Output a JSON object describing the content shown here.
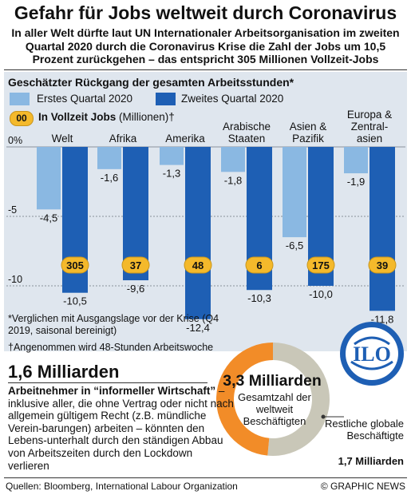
{
  "headline": "Gefahr für Jobs weltweit durch Coronavirus",
  "intro": "In aller Welt dürfte laut UN Internationaler Arbeitsorganisation im zweiten Quartal 2020 durch die Coronavirus Krise die Zahl der Jobs um 10,5 Prozent zurückgehen – das entspricht 305 Millionen Vollzeit-Jobs",
  "colors": {
    "q1": "#8ab8e2",
    "q2": "#1e5fb4",
    "badge": "#f4b92b",
    "panel": "#dfe6ee",
    "donut_informal": "#f28c28",
    "donut_remaining": "#c9c7b8"
  },
  "chart_data": {
    "type": "bar",
    "title": "Geschätzter Rückgang der gesamten Arbeitsstunden*",
    "yaxis_ticks": [
      "0%",
      "-5",
      "-10"
    ],
    "ylim": [
      -13.5,
      0
    ],
    "legend": {
      "q1": "Erstes Quartal 2020",
      "q2": "Zweites Quartal 2020",
      "jobs_badge_sample": "00",
      "jobs_label": "In Vollzeit Jobs",
      "jobs_unit": "(Millionen)†"
    },
    "categories": [
      "Welt",
      "Afrika",
      "Amerika",
      "Arabische Staaten",
      "Asien & Pazifik",
      "Europa & Zentral-asien"
    ],
    "category_lines": [
      [
        "Welt"
      ],
      [
        "Afrika"
      ],
      [
        "Amerika"
      ],
      [
        "Arabische",
        "Staaten"
      ],
      [
        "Asien &",
        "Pazifik"
      ],
      [
        "Europa &",
        "Zentral-",
        "asien"
      ]
    ],
    "series": [
      {
        "name": "Erstes Quartal 2020",
        "values": [
          -4.5,
          -1.6,
          -1.3,
          -1.8,
          -6.5,
          -1.9
        ],
        "labels": [
          "-4,5",
          "-1,6",
          "-1,3",
          "-1,8",
          "-6,5",
          "-1,9"
        ]
      },
      {
        "name": "Zweites Quartal 2020",
        "values": [
          -10.5,
          -9.6,
          -12.4,
          -10.3,
          -10.0,
          -11.8
        ],
        "labels": [
          "-10,5",
          "-9,6",
          "-12,4",
          "-10,3",
          "-10,0",
          "-11,8"
        ]
      }
    ],
    "jobs_millions": [
      "305",
      "37",
      "48",
      "6",
      "175",
      "39"
    ]
  },
  "footnote_verglichen": "*Verglichen mit Ausgangslage vor der Krise (Q4 2019, saisonal bereinigt)",
  "footnote_angenommen": "†Angenommen wird 48-Stunden Arbeitswoche",
  "informal": {
    "value": "1,6 Milliarden",
    "heading": "Arbeitnehmer in “informeller Wirtschaft”",
    "text": " – inklusive aller, die ohne Vertrag oder nicht nach allgemein gültigem Recht (z.B. mündliche Verein-barungen) arbeiten – könnten den Lebens-unterhalt durch den ständigen Abbau von Arbeitszeiten durch den Lockdown verlieren"
  },
  "donut": {
    "total_value": "3,3 Milliarden",
    "total_label": "Gesamtzahl der weltweit Beschäftigten",
    "informal_share": 1.6,
    "remaining_share": 1.7,
    "remaining_label": "Restliche globale Beschäftigte",
    "remaining_value": "1,7 Milliarden"
  },
  "logo": {
    "name": "ILO"
  },
  "source": "Quellen: Bloomberg, International Labour Organization",
  "credit": "© GRAPHIC NEWS"
}
